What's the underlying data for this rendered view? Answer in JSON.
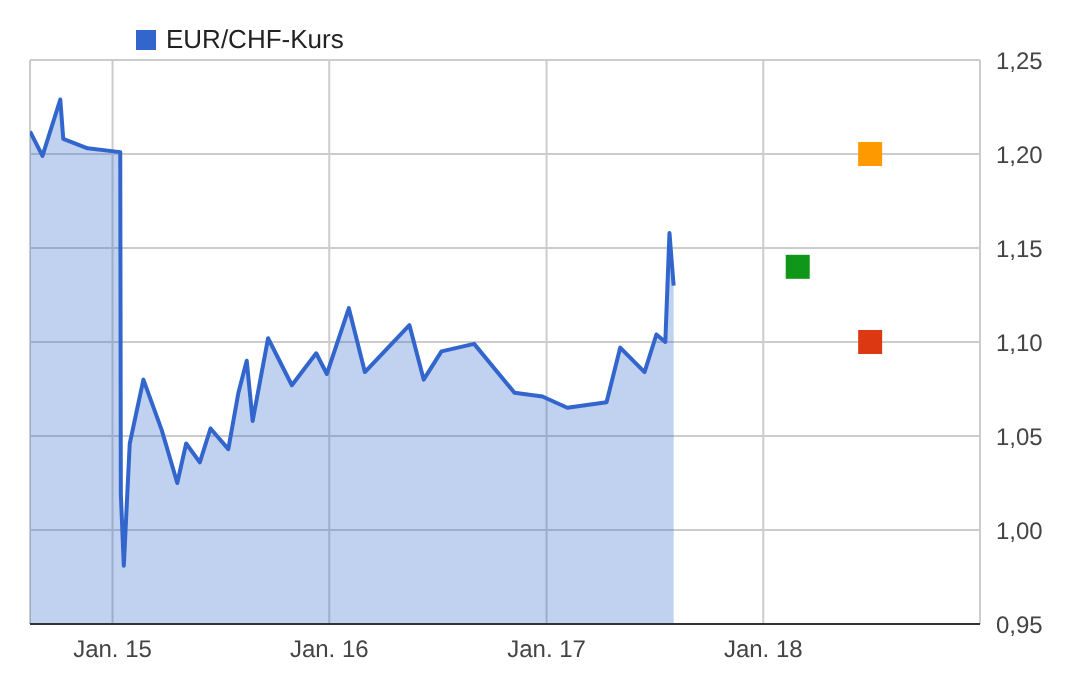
{
  "chart_data": {
    "type": "area",
    "legend": "top left",
    "grid": true,
    "xlim": [
      "2014-08-15",
      "2019-01-01"
    ],
    "xticks": [
      {
        "value": "2015-01-01",
        "label": "Jan. 15"
      },
      {
        "value": "2016-01-01",
        "label": "Jan. 16"
      },
      {
        "value": "2017-01-01",
        "label": "Jan. 17"
      },
      {
        "value": "2018-01-01",
        "label": "Jan. 18"
      }
    ],
    "ylim": [
      0.95,
      1.25
    ],
    "yticks": [
      {
        "value": 0.95,
        "label": "0,95"
      },
      {
        "value": 1.0,
        "label": "1,00"
      },
      {
        "value": 1.05,
        "label": "1,05"
      },
      {
        "value": 1.1,
        "label": "1,10"
      },
      {
        "value": 1.15,
        "label": "1,15"
      },
      {
        "value": 1.2,
        "label": "1,20"
      },
      {
        "value": 1.25,
        "label": "1,25"
      }
    ],
    "series": [
      {
        "name": "EUR/CHF-Kurs",
        "color": "#3366cc",
        "x": [
          "2014-08-15",
          "2014-09-05",
          "2014-10-05",
          "2014-10-10",
          "2014-11-20",
          "2015-01-14",
          "2015-01-15",
          "2015-01-20",
          "2015-01-30",
          "2015-02-22",
          "2015-03-25",
          "2015-04-20",
          "2015-05-05",
          "2015-05-28",
          "2015-06-15",
          "2015-07-15",
          "2015-08-01",
          "2015-08-15",
          "2015-08-25",
          "2015-09-20",
          "2015-10-30",
          "2015-12-10",
          "2015-12-28",
          "2016-02-03",
          "2016-03-01",
          "2016-05-15",
          "2016-06-08",
          "2016-07-08",
          "2016-09-01",
          "2016-11-08",
          "2016-12-25",
          "2017-02-05",
          "2017-04-12",
          "2017-05-05",
          "2017-06-15",
          "2017-07-05",
          "2017-07-20",
          "2017-07-27",
          "2017-08-03"
        ],
        "values": [
          1.212,
          1.199,
          1.229,
          1.208,
          1.203,
          1.201,
          1.019,
          0.981,
          1.046,
          1.08,
          1.053,
          1.025,
          1.046,
          1.036,
          1.054,
          1.043,
          1.073,
          1.09,
          1.058,
          1.102,
          1.077,
          1.094,
          1.083,
          1.118,
          1.084,
          1.109,
          1.08,
          1.095,
          1.099,
          1.073,
          1.071,
          1.065,
          1.068,
          1.097,
          1.084,
          1.104,
          1.1,
          1.158,
          1.13
        ]
      },
      {
        "type": "scatter",
        "marker": "square",
        "color": "#dc3912",
        "x": [
          "2018-06-30"
        ],
        "values": [
          1.1
        ]
      },
      {
        "type": "scatter",
        "marker": "square",
        "color": "#ff9900",
        "x": [
          "2018-06-30"
        ],
        "values": [
          1.2
        ]
      },
      {
        "type": "scatter",
        "marker": "square",
        "color": "#109618",
        "x": [
          "2018-02-28"
        ],
        "values": [
          1.14
        ]
      }
    ]
  }
}
